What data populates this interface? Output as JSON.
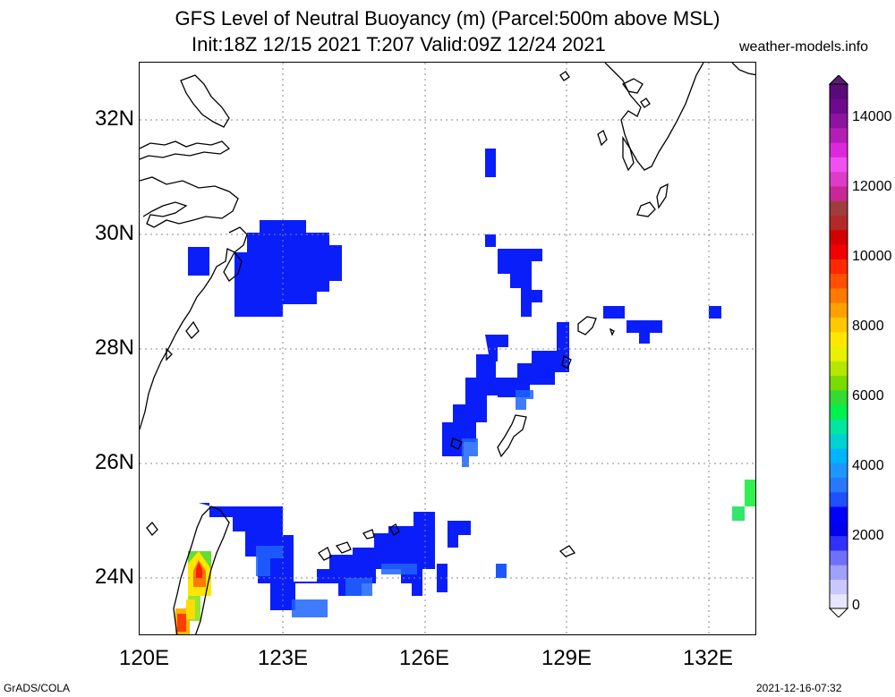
{
  "title": {
    "line1": "GFS Level of Neutral Buoyancy (m) (Parcel:500m above MSL)",
    "line2": "Init:18Z 12/15 2021 T:207 Valid:09Z 12/24 2021",
    "site": "weather-models.info"
  },
  "footer": {
    "left": "GrADS/COLA",
    "right": "2021-12-16-07:32"
  },
  "axes": {
    "lat_labels": [
      "32N",
      "30N",
      "28N",
      "26N",
      "24N"
    ],
    "lon_labels": [
      "120E",
      "123E",
      "126E",
      "129E",
      "132E"
    ]
  },
  "colorbar": {
    "labels": [
      "14000",
      "12000",
      "10000",
      "8000",
      "6000",
      "4000",
      "2000",
      "0"
    ],
    "colors": [
      "#e6e6ff",
      "#c8c8ff",
      "#a0a0ff",
      "#7070ff",
      "#3030ff",
      "#0000ee",
      "#0000ff",
      "#1e50ff",
      "#2878ff",
      "#1e96ff",
      "#00b4ff",
      "#00d2d2",
      "#00e6a0",
      "#00f050",
      "#32dc32",
      "#78dc00",
      "#b4e600",
      "#e6f000",
      "#ffe600",
      "#ffc800",
      "#ffa000",
      "#ff7800",
      "#ff5000",
      "#ff2800",
      "#f00000",
      "#d20000",
      "#b42828",
      "#a03c3c",
      "#c82896",
      "#dc3cc8",
      "#f050f0",
      "#dc28dc",
      "#b41eb4",
      "#8c14a0",
      "#6e0a8c",
      "#5a0a78"
    ],
    "top_color": "#5a1e6e"
  }
}
